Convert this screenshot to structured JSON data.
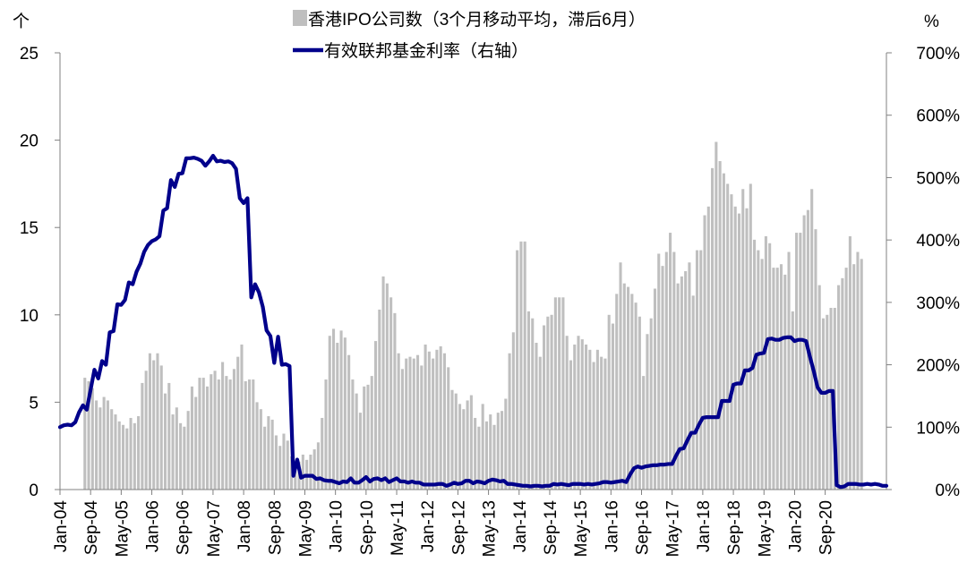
{
  "chart_data": {
    "type": "bar+line",
    "left_axis_unit": "个",
    "right_axis_unit": "%",
    "left_axis": {
      "min": 0,
      "max": 25,
      "ticks": [
        0,
        5,
        10,
        15,
        20,
        25
      ],
      "tick_labels": [
        "0",
        "5",
        "10",
        "15",
        "20",
        "25"
      ]
    },
    "right_axis": {
      "min": 0,
      "max": 700,
      "ticks": [
        0,
        100,
        200,
        300,
        400,
        500,
        600,
        700
      ],
      "tick_labels": [
        "0%",
        "100%",
        "200%",
        "300%",
        "400%",
        "500%",
        "600%",
        "700%"
      ]
    },
    "x_tick_labels": [
      "Jan-04",
      "Sep-04",
      "May-05",
      "Jan-06",
      "Sep-06",
      "May-07",
      "Jan-08",
      "Sep-08",
      "May-09",
      "Jan-10",
      "Sep-10",
      "May-11",
      "Jan-12",
      "Sep-12",
      "May-13",
      "Jan-14",
      "Sep-14",
      "May-15",
      "Jan-16",
      "Sep-16",
      "May-17",
      "Jan-18",
      "Sep-18",
      "May-19",
      "Jan-20",
      "Sep-20"
    ],
    "x_start": "2004-01",
    "bar_series": {
      "name": "香港IPO公司数（3个月移动平均，滞后6月）",
      "color": "#bfbfbf",
      "values": [
        6.4,
        6.2,
        5.8,
        5.1,
        4.7,
        5.3,
        5.1,
        4.6,
        4.3,
        3.9,
        3.7,
        3.5,
        4.1,
        3.8,
        4.2,
        6.1,
        6.8,
        7.8,
        7.4,
        7.8,
        7.1,
        5.5,
        6.1,
        4.3,
        4.7,
        3.8,
        3.6,
        4.5,
        5.9,
        5.3,
        6.4,
        6.4,
        5.9,
        6.6,
        6.8,
        6.3,
        7.3,
        6.5,
        6.3,
        6.9,
        7.6,
        8.3,
        6.2,
        6.3,
        6.3,
        5.0,
        4.6,
        3.6,
        4.2,
        4.0,
        3.1,
        2.5,
        3.2,
        2.8,
        1.9,
        1.4,
        1.6,
        2.0,
        1.7,
        2.0,
        2.3,
        2.7,
        4.1,
        6.3,
        8.8,
        9.2,
        8.4,
        9.1,
        8.7,
        7.7,
        6.3,
        5.5,
        4.4,
        5.9,
        6.0,
        6.5,
        8.5,
        10.3,
        12.2,
        11.8,
        11.0,
        10.1,
        7.8,
        6.9,
        7.5,
        7.6,
        7.5,
        7.7,
        7.1,
        8.3,
        7.9,
        7.5,
        8.0,
        8.2,
        7.8,
        7.0,
        5.7,
        5.5,
        4.9,
        4.6,
        5.1,
        5.4,
        4.1,
        3.6,
        4.9,
        3.9,
        4.3,
        3.7,
        4.4,
        4.5,
        5.2,
        7.8,
        9.0,
        13.7,
        14.2,
        14.2,
        10.2,
        9.8,
        8.4,
        7.6,
        9.4,
        9.9,
        10.0,
        11.0,
        11.0,
        11.0,
        8.8,
        7.4,
        8.3,
        8.8,
        8.6,
        8.3,
        8.0,
        7.3,
        8.0,
        7.6,
        7.5,
        10.0,
        9.5,
        11.2,
        13.0,
        11.8,
        11.6,
        11.2,
        10.7,
        9.9,
        6.5,
        8.9,
        9.8,
        11.5,
        13.5,
        12.8,
        13.6,
        14.7,
        13.6,
        11.8,
        12.2,
        12.5,
        13.0,
        11.1,
        13.7,
        13.7,
        15.7,
        16.2,
        18.4,
        19.9,
        18.8,
        18.1,
        17.5,
        16.9,
        16.2,
        15.8,
        17.2,
        16.1,
        17.5,
        14.3,
        13.7,
        13.2,
        14.5,
        14.1,
        12.7,
        12.7,
        12.9,
        12.3,
        13.6,
        10.2,
        14.7,
        14.7,
        15.7,
        16.0,
        17.2,
        14.9,
        11.7,
        9.8,
        10.0,
        10.4,
        10.4,
        11.7,
        12.1,
        12.7,
        14.5,
        12.9,
        13.6,
        13.2
      ],
      "lag_months": 6
    },
    "line_series": {
      "name": "有效联邦基金利率（右轴）",
      "color": "#00008b",
      "points": [
        [
          0,
          100
        ],
        [
          1,
          103
        ],
        [
          2,
          104
        ],
        [
          3,
          103
        ],
        [
          4,
          108
        ],
        [
          5,
          124
        ],
        [
          6,
          135
        ],
        [
          7,
          128
        ],
        [
          8,
          160
        ],
        [
          9,
          192
        ],
        [
          10,
          178
        ],
        [
          11,
          206
        ],
        [
          12,
          200
        ],
        [
          13,
          252
        ],
        [
          14,
          254
        ],
        [
          15,
          297
        ],
        [
          16,
          296
        ],
        [
          17,
          304
        ],
        [
          18,
          332
        ],
        [
          19,
          329
        ],
        [
          20,
          349
        ],
        [
          21,
          362
        ],
        [
          22,
          381
        ],
        [
          23,
          392
        ],
        [
          24,
          398
        ],
        [
          25,
          401
        ],
        [
          26,
          406
        ],
        [
          27,
          447
        ],
        [
          28,
          451
        ],
        [
          29,
          496
        ],
        [
          30,
          485
        ],
        [
          31,
          506
        ],
        [
          32,
          507
        ],
        [
          33,
          531
        ],
        [
          34,
          531
        ],
        [
          35,
          532
        ],
        [
          36,
          530
        ],
        [
          37,
          527
        ],
        [
          38,
          519
        ],
        [
          39,
          526
        ],
        [
          40,
          535
        ],
        [
          41,
          526
        ],
        [
          42,
          527
        ],
        [
          43,
          525
        ],
        [
          44,
          526
        ],
        [
          45,
          523
        ],
        [
          46,
          514
        ],
        [
          47,
          467
        ],
        [
          48,
          459
        ],
        [
          49,
          467
        ],
        [
          50,
          308
        ],
        [
          51,
          329
        ],
        [
          52,
          316
        ],
        [
          53,
          293
        ],
        [
          54,
          255
        ],
        [
          55,
          246
        ],
        [
          56,
          203
        ],
        [
          57,
          245
        ],
        [
          58,
          200
        ],
        [
          59,
          201
        ],
        [
          60,
          198
        ],
        [
          61,
          22
        ],
        [
          62,
          48
        ],
        [
          63,
          19
        ],
        [
          64,
          22
        ],
        [
          65,
          22
        ],
        [
          66,
          22
        ],
        [
          67,
          17
        ],
        [
          68,
          18
        ],
        [
          69,
          15
        ],
        [
          70,
          14
        ],
        [
          71,
          14
        ],
        [
          72,
          12
        ],
        [
          73,
          10
        ],
        [
          74,
          13
        ],
        [
          75,
          12
        ],
        [
          76,
          18
        ],
        [
          77,
          11
        ],
        [
          78,
          11
        ],
        [
          79,
          15
        ],
        [
          80,
          20
        ],
        [
          81,
          13
        ],
        [
          82,
          17
        ],
        [
          83,
          18
        ],
        [
          84,
          15
        ],
        [
          85,
          18
        ],
        [
          86,
          12
        ],
        [
          87,
          15
        ],
        [
          88,
          18
        ],
        [
          89,
          13
        ],
        [
          90,
          13
        ],
        [
          91,
          11
        ],
        [
          92,
          13
        ],
        [
          93,
          11
        ],
        [
          94,
          11
        ],
        [
          95,
          8
        ],
        [
          96,
          8
        ],
        [
          97,
          8
        ],
        [
          98,
          8
        ],
        [
          99,
          9
        ],
        [
          100,
          9
        ],
        [
          101,
          6
        ],
        [
          102,
          8
        ],
        [
          103,
          11
        ],
        [
          104,
          9
        ],
        [
          105,
          10
        ],
        [
          106,
          14
        ],
        [
          107,
          14
        ],
        [
          108,
          10
        ],
        [
          109,
          13
        ],
        [
          110,
          12
        ],
        [
          111,
          10
        ],
        [
          112,
          14
        ],
        [
          113,
          16
        ],
        [
          114,
          15
        ],
        [
          115,
          13
        ],
        [
          116,
          14
        ],
        [
          117,
          9
        ],
        [
          118,
          9
        ],
        [
          119,
          8
        ],
        [
          120,
          7
        ],
        [
          121,
          6
        ],
        [
          122,
          6
        ],
        [
          123,
          5
        ],
        [
          124,
          6
        ],
        [
          125,
          6
        ],
        [
          126,
          5
        ],
        [
          127,
          6
        ],
        [
          128,
          6
        ],
        [
          129,
          9
        ],
        [
          130,
          8
        ],
        [
          131,
          9
        ],
        [
          132,
          8
        ],
        [
          133,
          7
        ],
        [
          134,
          9
        ],
        [
          135,
          9
        ],
        [
          136,
          9
        ],
        [
          137,
          8
        ],
        [
          138,
          9
        ],
        [
          139,
          8
        ],
        [
          140,
          9
        ],
        [
          141,
          10
        ],
        [
          142,
          12
        ],
        [
          143,
          12
        ],
        [
          144,
          11
        ],
        [
          145,
          12
        ],
        [
          146,
          13
        ],
        [
          147,
          14
        ],
        [
          148,
          12
        ],
        [
          149,
          24
        ],
        [
          150,
          34
        ],
        [
          151,
          37
        ],
        [
          152,
          35
        ],
        [
          153,
          37
        ],
        [
          154,
          38
        ],
        [
          155,
          39
        ],
        [
          156,
          39
        ],
        [
          157,
          40
        ],
        [
          158,
          40
        ],
        [
          159,
          41
        ],
        [
          160,
          41
        ],
        [
          161,
          54
        ],
        [
          162,
          65
        ],
        [
          163,
          66
        ],
        [
          164,
          79
        ],
        [
          165,
          91
        ],
        [
          166,
          91
        ],
        [
          167,
          104
        ],
        [
          168,
          115
        ],
        [
          169,
          116
        ],
        [
          170,
          116
        ],
        [
          171,
          116
        ],
        [
          172,
          116
        ],
        [
          173,
          142
        ],
        [
          174,
          142
        ],
        [
          175,
          142
        ],
        [
          176,
          168
        ],
        [
          177,
          170
        ],
        [
          178,
          170
        ],
        [
          179,
          191
        ],
        [
          180,
          191
        ],
        [
          181,
          195
        ],
        [
          182,
          216
        ],
        [
          183,
          218
        ],
        [
          184,
          219
        ],
        [
          185,
          241
        ],
        [
          186,
          242
        ],
        [
          187,
          240
        ],
        [
          188,
          240
        ],
        [
          189,
          243
        ],
        [
          190,
          244
        ],
        [
          191,
          244
        ],
        [
          192,
          238
        ],
        [
          193,
          240
        ],
        [
          194,
          240
        ],
        [
          195,
          238
        ],
        [
          196,
          213
        ],
        [
          197,
          190
        ],
        [
          198,
          164
        ],
        [
          199,
          155
        ],
        [
          200,
          155
        ],
        [
          201,
          158
        ],
        [
          202,
          158
        ],
        [
          203,
          7
        ],
        [
          204,
          4
        ],
        [
          205,
          5
        ],
        [
          206,
          9
        ],
        [
          207,
          9
        ],
        [
          208,
          9
        ],
        [
          209,
          8
        ],
        [
          210,
          8
        ],
        [
          211,
          9
        ],
        [
          212,
          8
        ],
        [
          213,
          9
        ],
        [
          214,
          8
        ],
        [
          215,
          6
        ],
        [
          216,
          6
        ]
      ]
    },
    "legend_position": "top-center",
    "grid": false
  },
  "colors": {
    "bars": "#bfbfbf",
    "line": "#00008b",
    "axis": "#808080",
    "text": "#000000"
  }
}
